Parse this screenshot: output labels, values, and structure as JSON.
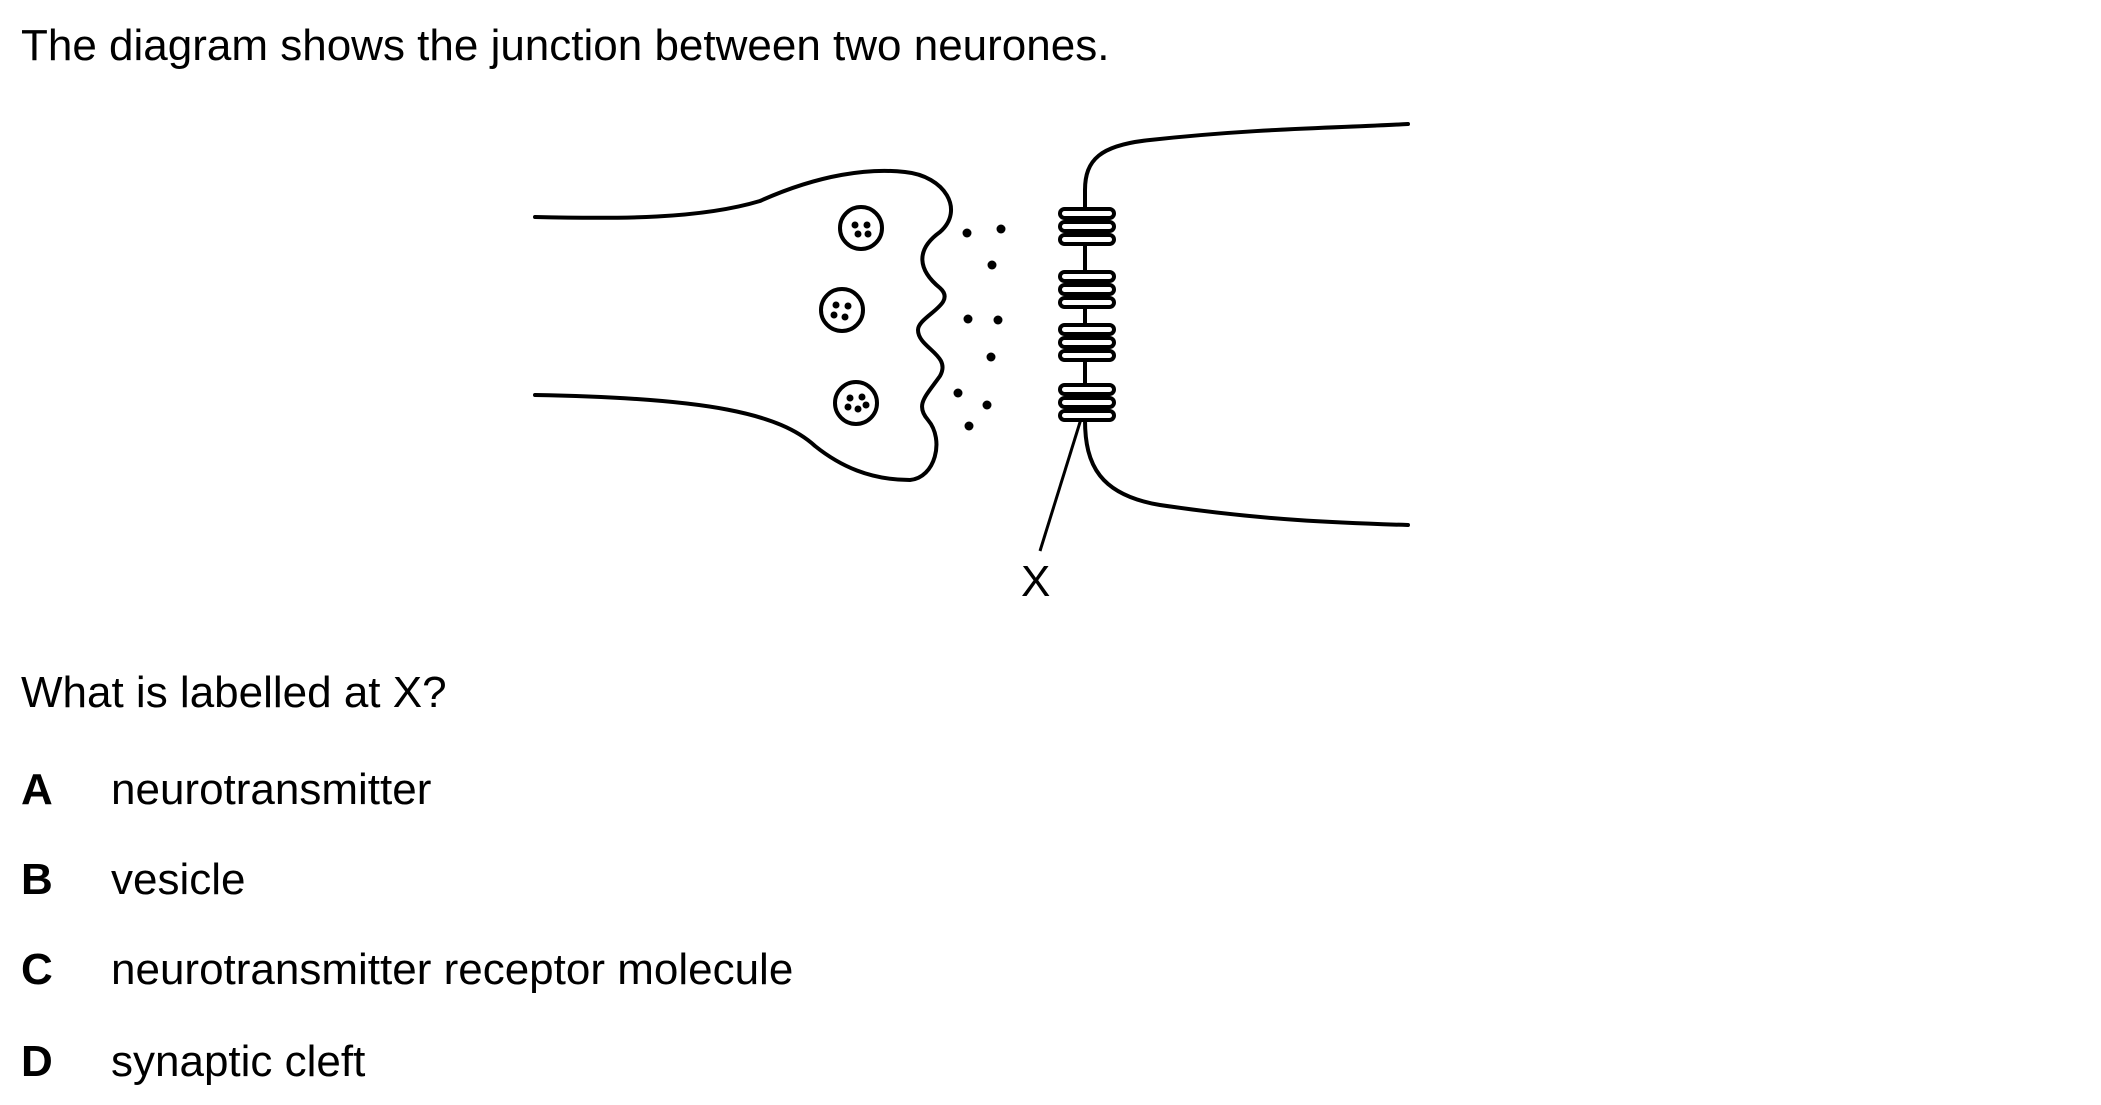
{
  "question": {
    "stem": "The diagram shows the junction between two neurones.",
    "prompt": "What is labelled at X?"
  },
  "diagram": {
    "label_x": "X",
    "stroke_color": "#000000"
  },
  "options": [
    {
      "letter": "A",
      "text": "neurotransmitter"
    },
    {
      "letter": "B",
      "text": "vesicle"
    },
    {
      "letter": "C",
      "text": "neurotransmitter receptor molecule"
    },
    {
      "letter": "D",
      "text": "synaptic cleft"
    }
  ]
}
